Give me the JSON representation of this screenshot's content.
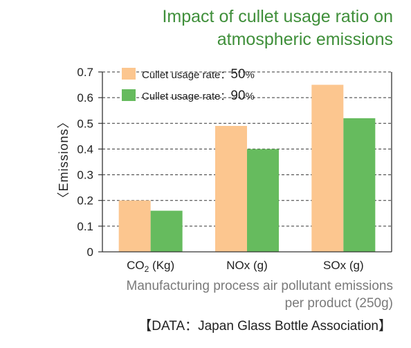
{
  "title_line1": "Impact of cullet usage ratio on",
  "title_line2": "atmospheric emissions",
  "caption_line1": "Manufacturing process air pollutant emissions",
  "caption_line2": "per product (250g)",
  "source": "【DATA：Japan Glass Bottle Association】",
  "chart_data": {
    "type": "bar",
    "categories": [
      "CO2 (Kg)",
      "NOx (g)",
      "SOx (g)"
    ],
    "series": [
      {
        "name": "Cullet usage rate：50%",
        "values": [
          0.2,
          0.49,
          0.65
        ],
        "color": "#fcc68f"
      },
      {
        "name": "Cullet usage rate：90%",
        "values": [
          0.16,
          0.4,
          0.52
        ],
        "color": "#66bb5e"
      }
    ],
    "ylabel": "〈Emissions〉",
    "ylim": [
      0,
      0.7
    ],
    "yticks": [
      "0",
      "0.1",
      "0.2",
      "0.3",
      "0.4",
      "0.5",
      "0.6",
      "0.7"
    ],
    "grid": "dashed horizontal",
    "legend_position": "top-left"
  }
}
